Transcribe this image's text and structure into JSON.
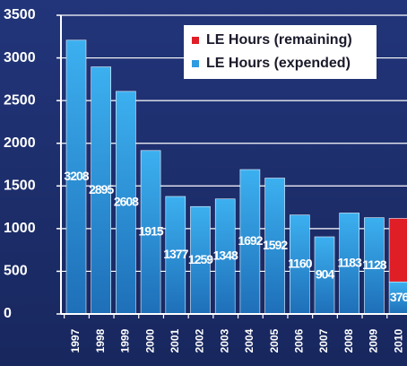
{
  "chart_data": {
    "type": "bar",
    "stacked": true,
    "categories": [
      "1997",
      "1998",
      "1999",
      "2000",
      "2001",
      "2002",
      "2003",
      "2004",
      "2005",
      "2006",
      "2007",
      "2008",
      "2009",
      "2010"
    ],
    "series": [
      {
        "name": "LE Hours (expended)",
        "color": "#2f9be0",
        "values": [
          3208,
          2895,
          2608,
          1915,
          1377,
          1259,
          1348,
          1692,
          1592,
          1160,
          904,
          1183,
          1128,
          376
        ]
      },
      {
        "name": "LE Hours (remaining)",
        "color": "#e01e26",
        "values": [
          null,
          null,
          null,
          null,
          null,
          null,
          null,
          null,
          null,
          null,
          null,
          null,
          null,
          744
        ]
      }
    ],
    "ylim": [
      0,
      3500
    ],
    "yticks": [
      0,
      500,
      1000,
      1500,
      2000,
      2500,
      3000,
      3500
    ],
    "grid": true,
    "legend": "top-right"
  }
}
